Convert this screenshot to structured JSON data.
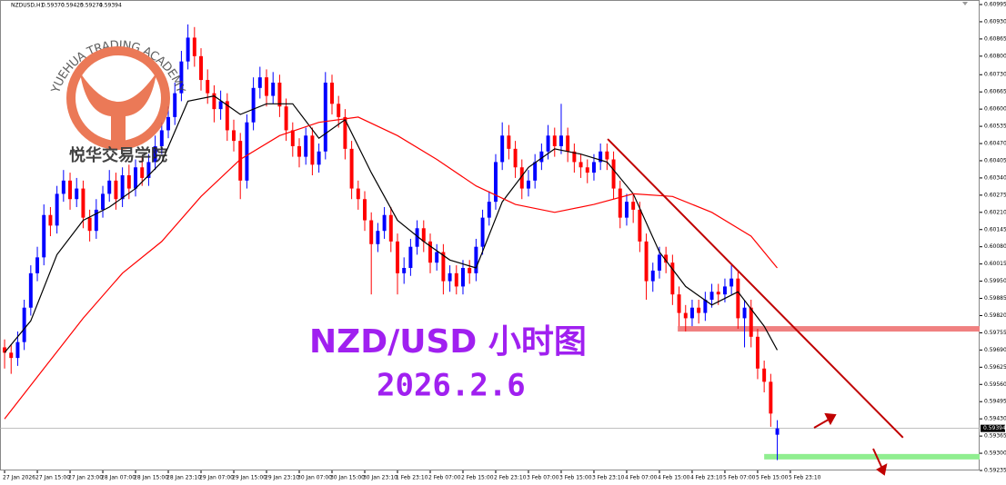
{
  "chart_data": {
    "type": "candlestick",
    "info": {
      "symbol": "NZDUSD,H1",
      "ohlc_labels": [
        "0.59370",
        "0.59425",
        "0.59274",
        "0.59394"
      ]
    },
    "up_color": "#0000ff",
    "down_color": "#ff0000",
    "open": [
      0.597,
      0.5968,
      0.5966,
      0.5972,
      0.5985,
      0.5998,
      0.6004,
      0.602,
      0.6016,
      0.6028,
      0.6033,
      0.6026,
      0.603,
      0.6019,
      0.6014,
      0.6022,
      0.6028,
      0.6033,
      0.6026,
      0.6035,
      0.603,
      0.6038,
      0.6034,
      0.604,
      0.6046,
      0.6052,
      0.6057,
      0.6066,
      0.6078,
      0.6087,
      0.608,
      0.6071,
      0.6066,
      0.606,
      0.6063,
      0.6052,
      0.6048,
      0.6033,
      0.6055,
      0.6068,
      0.6072,
      0.6065,
      0.607,
      0.6061,
      0.6052,
      0.6046,
      0.6042,
      0.605,
      0.6039,
      0.6044,
      0.607,
      0.6062,
      0.6057,
      0.6045,
      0.603,
      0.6026,
      0.6018,
      0.6009,
      0.6014,
      0.602,
      0.601,
      0.5998,
      0.6,
      0.6008,
      0.6015,
      0.601,
      0.6002,
      0.6006,
      0.5995,
      0.5998,
      0.5993,
      0.6,
      0.5998,
      0.6008,
      0.6019,
      0.6025,
      0.604,
      0.605,
      0.6045,
      0.6038,
      0.603,
      0.6033,
      0.604,
      0.6044,
      0.605,
      0.6046,
      0.605,
      0.6044,
      0.604,
      0.6038,
      0.6036,
      0.604,
      0.6044,
      0.6041,
      0.603,
      0.6019,
      0.6025,
      0.6022,
      0.601,
      0.5995,
      0.5999,
      0.6005,
      0.6002,
      0.599,
      0.5983,
      0.5981,
      0.5985,
      0.5983,
      0.5988,
      0.5991,
      0.599,
      0.5993,
      0.5996,
      0.5981,
      0.5985,
      0.5974,
      0.5962,
      0.5957,
      0.5937
    ],
    "high": [
      0.5973,
      0.5971,
      0.5976,
      0.5988,
      0.6001,
      0.6008,
      0.6024,
      0.6023,
      0.6031,
      0.6037,
      0.6036,
      0.6034,
      0.6033,
      0.6022,
      0.6026,
      0.6031,
      0.6037,
      0.6036,
      0.6038,
      0.6039,
      0.6041,
      0.6042,
      0.6043,
      0.605,
      0.6055,
      0.6061,
      0.607,
      0.6082,
      0.6092,
      0.6091,
      0.6083,
      0.6075,
      0.6069,
      0.6067,
      0.6066,
      0.6056,
      0.6051,
      0.6058,
      0.6072,
      0.6076,
      0.6075,
      0.6074,
      0.6073,
      0.6064,
      0.6055,
      0.6049,
      0.6053,
      0.6053,
      0.6047,
      0.6074,
      0.6073,
      0.6065,
      0.606,
      0.6048,
      0.6033,
      0.6029,
      0.6021,
      0.6017,
      0.6023,
      0.6023,
      0.6013,
      0.6004,
      0.6011,
      0.6018,
      0.6018,
      0.6013,
      0.6009,
      0.6009,
      0.6001,
      0.6001,
      0.6003,
      0.6003,
      0.6011,
      0.6022,
      0.6029,
      0.6043,
      0.6055,
      0.6054,
      0.6048,
      0.6041,
      0.6037,
      0.6043,
      0.6047,
      0.6054,
      0.6053,
      0.6062,
      0.6053,
      0.6047,
      0.6043,
      0.6041,
      0.6043,
      0.6047,
      0.6047,
      0.6044,
      0.6033,
      0.6028,
      0.6028,
      0.6025,
      0.6013,
      0.6002,
      0.6008,
      0.6008,
      0.6005,
      0.5993,
      0.5986,
      0.5988,
      0.5988,
      0.5991,
      0.5994,
      0.5994,
      0.5996,
      0.6001,
      0.5999,
      0.5988,
      0.5988,
      0.5977,
      0.5965,
      0.596,
      0.59425
    ],
    "low": [
      0.5962,
      0.596,
      0.5963,
      0.5969,
      0.5982,
      0.5995,
      0.6001,
      0.6012,
      0.6013,
      0.6025,
      0.6022,
      0.6023,
      0.6015,
      0.601,
      0.6011,
      0.6019,
      0.6025,
      0.6022,
      0.6023,
      0.6026,
      0.6027,
      0.6031,
      0.6031,
      0.6037,
      0.6043,
      0.6049,
      0.6054,
      0.6063,
      0.6075,
      0.6076,
      0.6067,
      0.6062,
      0.6055,
      0.6056,
      0.6048,
      0.6044,
      0.6026,
      0.603,
      0.6052,
      0.6064,
      0.6061,
      0.6062,
      0.6057,
      0.6048,
      0.6042,
      0.6038,
      0.6039,
      0.6035,
      0.6036,
      0.6041,
      0.6058,
      0.6053,
      0.6041,
      0.6026,
      0.6022,
      0.6014,
      0.599,
      0.6006,
      0.6011,
      0.6006,
      0.599,
      0.5994,
      0.5997,
      0.6005,
      0.6006,
      0.5998,
      0.5999,
      0.599,
      0.5991,
      0.599,
      0.599,
      0.5994,
      0.5995,
      0.6005,
      0.6016,
      0.6022,
      0.6037,
      0.6041,
      0.6034,
      0.6026,
      0.6027,
      0.603,
      0.6037,
      0.6041,
      0.6042,
      0.6043,
      0.604,
      0.6036,
      0.6034,
      0.6032,
      0.6033,
      0.6037,
      0.6037,
      0.6026,
      0.6015,
      0.6016,
      0.6017,
      0.6006,
      0.5988,
      0.5991,
      0.5996,
      0.5998,
      0.5986,
      0.5978,
      0.5976,
      0.5978,
      0.5979,
      0.598,
      0.5985,
      0.5986,
      0.5987,
      0.599,
      0.5977,
      0.597,
      0.597,
      0.5958,
      0.5953,
      0.594,
      0.59274
    ],
    "close": [
      0.5968,
      0.5966,
      0.5972,
      0.5985,
      0.5998,
      0.6004,
      0.602,
      0.6016,
      0.6028,
      0.6033,
      0.6026,
      0.603,
      0.6019,
      0.6014,
      0.6022,
      0.6028,
      0.6033,
      0.6026,
      0.6035,
      0.603,
      0.6038,
      0.6034,
      0.604,
      0.6046,
      0.6052,
      0.6057,
      0.6066,
      0.6078,
      0.6087,
      0.608,
      0.6071,
      0.6066,
      0.606,
      0.6063,
      0.6052,
      0.6048,
      0.6033,
      0.6055,
      0.6068,
      0.6072,
      0.6065,
      0.607,
      0.6061,
      0.6052,
      0.6046,
      0.6042,
      0.605,
      0.6039,
      0.6044,
      0.607,
      0.6062,
      0.6057,
      0.6045,
      0.603,
      0.6026,
      0.6018,
      0.6009,
      0.6014,
      0.602,
      0.601,
      0.5998,
      0.6,
      0.6008,
      0.6015,
      0.601,
      0.6002,
      0.6006,
      0.5995,
      0.5998,
      0.5993,
      0.6,
      0.5998,
      0.6008,
      0.6019,
      0.6025,
      0.604,
      0.605,
      0.6045,
      0.6038,
      0.603,
      0.6033,
      0.604,
      0.6044,
      0.605,
      0.6046,
      0.605,
      0.6044,
      0.604,
      0.6038,
      0.6036,
      0.604,
      0.6044,
      0.6041,
      0.603,
      0.6019,
      0.6025,
      0.6022,
      0.601,
      0.5995,
      0.5999,
      0.6005,
      0.6002,
      0.599,
      0.5983,
      0.5981,
      0.5985,
      0.5983,
      0.5988,
      0.5991,
      0.599,
      0.5993,
      0.5996,
      0.5981,
      0.5985,
      0.5974,
      0.5962,
      0.5957,
      0.5945,
      0.59394
    ],
    "lines": [
      {
        "color": "#000000",
        "x": [
          0,
          4,
          8,
          12,
          16,
          20,
          24,
          28,
          32,
          36,
          40,
          44,
          48,
          52,
          56,
          60,
          64,
          68,
          72,
          76,
          80,
          84,
          88,
          92,
          96,
          100,
          104,
          108,
          112,
          116,
          118
        ],
        "values": [
          0.5968,
          0.598,
          0.6005,
          0.6018,
          0.6023,
          0.603,
          0.604,
          0.6063,
          0.6065,
          0.6058,
          0.6062,
          0.6062,
          0.6049,
          0.6056,
          0.6036,
          0.6018,
          0.601,
          0.6003,
          0.6,
          0.6025,
          0.6038,
          0.6045,
          0.6043,
          0.604,
          0.6028,
          0.6006,
          0.5993,
          0.5986,
          0.5991,
          0.5978,
          0.5969
        ]
      },
      {
        "color": "#ff0000",
        "x": [
          0,
          6,
          12,
          18,
          24,
          30,
          36,
          42,
          48,
          54,
          60,
          66,
          72,
          78,
          84,
          90,
          96,
          102,
          108,
          114,
          118
        ],
        "values": [
          0.5943,
          0.5962,
          0.5981,
          0.5998,
          0.601,
          0.6027,
          0.6041,
          0.605,
          0.6055,
          0.6057,
          0.605,
          0.6041,
          0.6031,
          0.6024,
          0.6021,
          0.6024,
          0.6028,
          0.6027,
          0.6021,
          0.6012,
          0.6
        ]
      }
    ],
    "levels": [
      {
        "value": 0.5977,
        "x_from": 102.8,
        "color": "#f08080"
      },
      {
        "value": 0.59287,
        "x_from": 116,
        "color": "#90ee90"
      }
    ],
    "trendline": {
      "x": [
        92.1,
        137.2
      ],
      "values": [
        0.60487,
        0.59359
      ],
      "color": "#c00000"
    },
    "annotations": {
      "title": "NZD/USD  小时图",
      "date": "2026.2.6",
      "color": "#a020f0"
    },
    "watermark": {
      "arc_text": "YUEHUA TRADING ACADEMY",
      "name": "悦华交易学院"
    },
    "xlim": [
      -0.7,
      148.9
    ],
    "xticks": [
      {
        "value": 0,
        "label": "27 Jan 2026"
      },
      {
        "value": 5,
        "label": "27 Jan 15:00"
      },
      {
        "value": 10,
        "label": "27 Jan 23:00"
      },
      {
        "value": 15,
        "label": "28 Jan 07:00"
      },
      {
        "value": 20,
        "label": "28 Jan 15:00"
      },
      {
        "value": 25,
        "label": "28 Jan 23:10"
      },
      {
        "value": 30,
        "label": "29 Jan 07:00"
      },
      {
        "value": 35,
        "label": "29 Jan 15:00"
      },
      {
        "value": 40,
        "label": "29 Jan 23:10"
      },
      {
        "value": 45,
        "label": "30 Jan 07:00"
      },
      {
        "value": 50,
        "label": "30 Jan 15:00"
      },
      {
        "value": 55,
        "label": "30 Jan 23:10"
      },
      {
        "value": 60,
        "label": "1 Feb 23:10"
      },
      {
        "value": 65,
        "label": "2 Feb 07:00"
      },
      {
        "value": 70,
        "label": "2 Feb 15:00"
      },
      {
        "value": 75,
        "label": "2 Feb 23:10"
      },
      {
        "value": 80,
        "label": "3 Feb 07:00"
      },
      {
        "value": 85,
        "label": "3 Feb 15:00"
      },
      {
        "value": 90,
        "label": "3 Feb 23:10"
      },
      {
        "value": 95,
        "label": "4 Feb 07:00"
      },
      {
        "value": 100,
        "label": "4 Feb 15:00"
      },
      {
        "value": 105,
        "label": "4 Feb 23:10"
      },
      {
        "value": 110,
        "label": "5 Feb 07:00"
      },
      {
        "value": 115,
        "label": "5 Feb 15:00"
      },
      {
        "value": 120,
        "label": "5 Feb 23:10"
      }
    ],
    "ylim": [
      0.59235,
      0.60995
    ],
    "yticks": [
      {
        "value": 0.60995,
        "label": "0.60995"
      },
      {
        "value": 0.6093,
        "label": "0.60930"
      },
      {
        "value": 0.60865,
        "label": "0.60865"
      },
      {
        "value": 0.608,
        "label": "0.60800"
      },
      {
        "value": 0.6073,
        "label": "0.60730"
      },
      {
        "value": 0.60665,
        "label": "0.60665"
      },
      {
        "value": 0.606,
        "label": "0.60600"
      },
      {
        "value": 0.60535,
        "label": "0.60535"
      },
      {
        "value": 0.6047,
        "label": "0.60470"
      },
      {
        "value": 0.60405,
        "label": "0.60405"
      },
      {
        "value": 0.6034,
        "label": "0.60340"
      },
      {
        "value": 0.60275,
        "label": "0.60275"
      },
      {
        "value": 0.6021,
        "label": "0.60210"
      },
      {
        "value": 0.60145,
        "label": "0.60145"
      },
      {
        "value": 0.6008,
        "label": "0.60080"
      },
      {
        "value": 0.60015,
        "label": "0.60015"
      },
      {
        "value": 0.5995,
        "label": "0.59950"
      },
      {
        "value": 0.59885,
        "label": "0.59885"
      },
      {
        "value": 0.5982,
        "label": "0.59820"
      },
      {
        "value": 0.59755,
        "label": "0.59755"
      },
      {
        "value": 0.5969,
        "label": "0.59690"
      },
      {
        "value": 0.59625,
        "label": "0.59625"
      },
      {
        "value": 0.5956,
        "label": "0.59560"
      },
      {
        "value": 0.59495,
        "label": "0.59495"
      },
      {
        "value": 0.5943,
        "label": "0.59430"
      },
      {
        "value": 0.59365,
        "label": "0.59365"
      },
      {
        "value": 0.593,
        "label": "0.59300"
      },
      {
        "value": 0.59235,
        "label": "0.59235"
      }
    ]
  }
}
